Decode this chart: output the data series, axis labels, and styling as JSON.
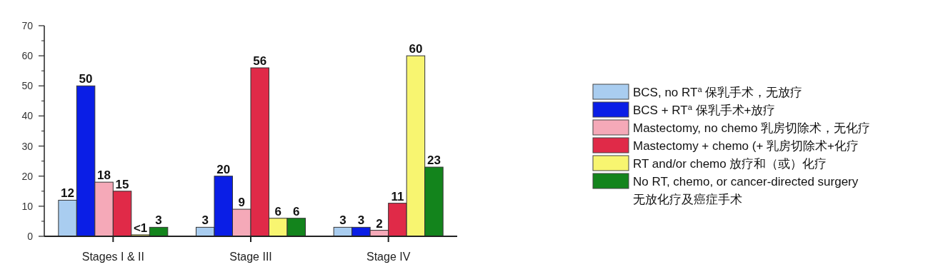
{
  "chart_data": {
    "type": "bar",
    "categories": [
      "Stages I & II",
      "Stage III",
      "Stage IV"
    ],
    "series": [
      {
        "name": "BCS, no RT$^{a}$ 保乳手术，无放疗",
        "color": "#a9cdf0",
        "values": [
          12,
          3,
          3
        ],
        "value_labels": [
          "12",
          "3",
          "3"
        ]
      },
      {
        "name": "BCS + RT$^{a}$ 保乳手术+放疗",
        "color": "#0a1ee6",
        "values": [
          50,
          20,
          3
        ],
        "value_labels": [
          "50",
          "20",
          "3"
        ]
      },
      {
        "name": "Mastectomy, no chemo 乳房切除术，无化疗",
        "color": "#f5a9b8",
        "values": [
          18,
          9,
          2
        ],
        "value_labels": [
          "18",
          "9",
          "2"
        ]
      },
      {
        "name": "Mastectomy + chemo (+ 乳房切除术+化疗",
        "color": "#e02a48",
        "values": [
          15,
          56,
          11
        ],
        "value_labels": [
          "15",
          "56",
          "11"
        ]
      },
      {
        "name": "RT and/or chemo 放疗和（或）化疗",
        "color": "#f8f570",
        "values": [
          0.5,
          6,
          60
        ],
        "value_labels": [
          "<1",
          "6",
          "60"
        ]
      },
      {
        "name": "No RT, chemo, or cancer-directed surgery 无放化疗及癌症手术",
        "color": "#13841c",
        "values": [
          3,
          6,
          23
        ],
        "value_labels": [
          "3",
          "6",
          "23"
        ]
      }
    ],
    "ylim": [
      0,
      70
    ],
    "yticks": [
      0,
      10,
      20,
      30,
      40,
      50,
      60,
      70
    ],
    "grid": false,
    "legend": "right"
  }
}
